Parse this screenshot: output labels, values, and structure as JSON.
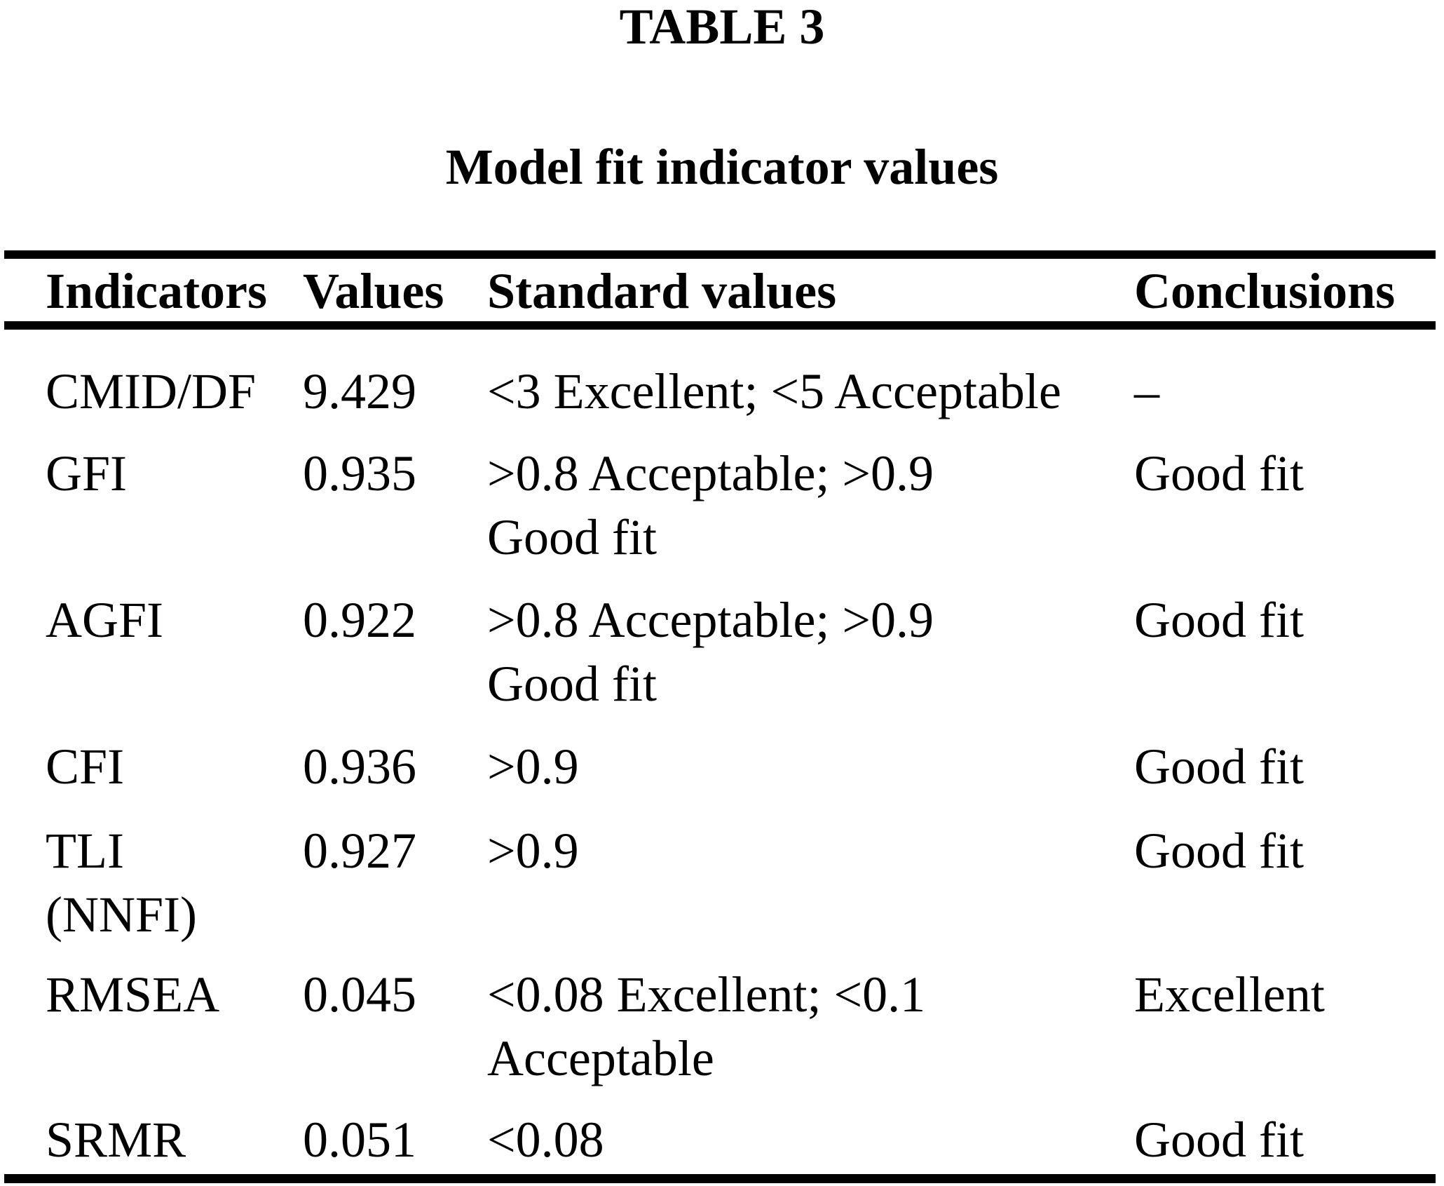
{
  "table": {
    "label": "TABLE 3",
    "caption": "Model fit indicator values",
    "columns": [
      "Indicators",
      "Values",
      "Standard values",
      "Conclusions"
    ],
    "rows": [
      {
        "indicator": [
          "CMID/DF"
        ],
        "value": "9.429",
        "standard": [
          "<3 Excellent; <5 Acceptable"
        ],
        "conclusion": "–"
      },
      {
        "indicator": [
          "GFI"
        ],
        "value": "0.935",
        "standard": [
          ">0.8 Acceptable; >0.9",
          "Good fit"
        ],
        "conclusion": "Good fit"
      },
      {
        "indicator": [
          "AGFI"
        ],
        "value": "0.922",
        "standard": [
          ">0.8 Acceptable; >0.9",
          "Good fit"
        ],
        "conclusion": "Good fit"
      },
      {
        "indicator": [
          "CFI"
        ],
        "value": "0.936",
        "standard": [
          ">0.9"
        ],
        "conclusion": "Good fit"
      },
      {
        "indicator": [
          "TLI",
          "(NNFI)"
        ],
        "value": "0.927",
        "standard": [
          ">0.9"
        ],
        "conclusion": "Good fit"
      },
      {
        "indicator": [
          "RMSEA"
        ],
        "value": "0.045",
        "standard": [
          "<0.08 Excellent; <0.1",
          "Acceptable"
        ],
        "conclusion": "Excellent"
      },
      {
        "indicator": [
          "SRMR"
        ],
        "value": "0.051",
        "standard": [
          "<0.08"
        ],
        "conclusion": "Good fit"
      }
    ],
    "text_color": "#000000",
    "background_color": "#ffffff"
  }
}
